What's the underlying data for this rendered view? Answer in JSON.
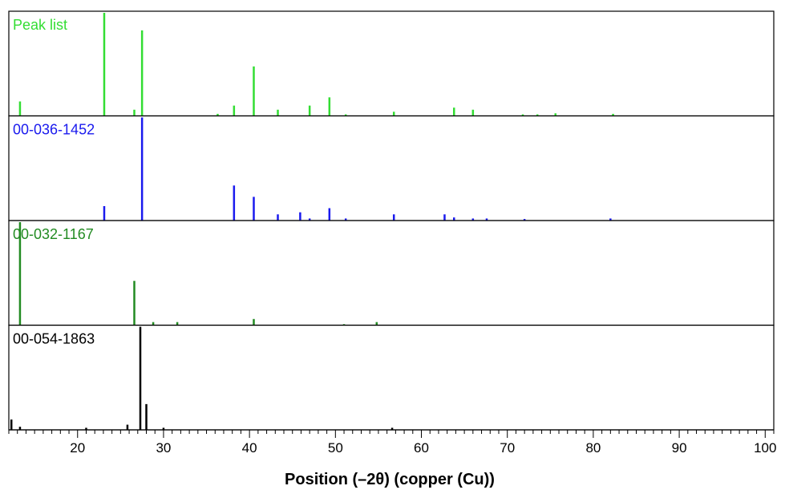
{
  "chart_data": {
    "type": "stick",
    "xlabel": "Position (–2θ) (copper (Cu))",
    "xlim": [
      12,
      101
    ],
    "x_ticks": [
      20,
      30,
      40,
      50,
      60,
      70,
      80,
      90,
      100
    ],
    "panels": [
      {
        "name": "Peak list",
        "color": "#33dd33",
        "peaks": [
          {
            "x": 13.3,
            "y": 14
          },
          {
            "x": 23.1,
            "y": 100
          },
          {
            "x": 26.6,
            "y": 6
          },
          {
            "x": 27.5,
            "y": 83
          },
          {
            "x": 36.3,
            "y": 2
          },
          {
            "x": 38.2,
            "y": 10
          },
          {
            "x": 40.5,
            "y": 48
          },
          {
            "x": 43.3,
            "y": 6
          },
          {
            "x": 47.0,
            "y": 10
          },
          {
            "x": 49.3,
            "y": 18
          },
          {
            "x": 51.2,
            "y": 1.5
          },
          {
            "x": 56.8,
            "y": 4
          },
          {
            "x": 63.8,
            "y": 8
          },
          {
            "x": 66.0,
            "y": 6
          },
          {
            "x": 71.8,
            "y": 1.5
          },
          {
            "x": 73.5,
            "y": 1.5
          },
          {
            "x": 75.6,
            "y": 2.5
          },
          {
            "x": 82.3,
            "y": 2
          }
        ]
      },
      {
        "name": "00-036-1452",
        "color": "#1a1aee",
        "peaks": [
          {
            "x": 23.1,
            "y": 14
          },
          {
            "x": 27.5,
            "y": 100
          },
          {
            "x": 38.2,
            "y": 34
          },
          {
            "x": 40.5,
            "y": 23
          },
          {
            "x": 43.3,
            "y": 6
          },
          {
            "x": 45.9,
            "y": 8
          },
          {
            "x": 47.0,
            "y": 2
          },
          {
            "x": 49.3,
            "y": 12
          },
          {
            "x": 51.2,
            "y": 2
          },
          {
            "x": 56.8,
            "y": 6
          },
          {
            "x": 62.7,
            "y": 6
          },
          {
            "x": 63.8,
            "y": 3
          },
          {
            "x": 66.0,
            "y": 2
          },
          {
            "x": 67.6,
            "y": 2
          },
          {
            "x": 72.0,
            "y": 1.5
          },
          {
            "x": 82.0,
            "y": 2
          }
        ]
      },
      {
        "name": "00-032-1167",
        "color": "#228b22",
        "peaks": [
          {
            "x": 13.3,
            "y": 100
          },
          {
            "x": 26.6,
            "y": 43
          },
          {
            "x": 28.8,
            "y": 3
          },
          {
            "x": 31.6,
            "y": 3
          },
          {
            "x": 40.5,
            "y": 6
          },
          {
            "x": 51.0,
            "y": 1
          },
          {
            "x": 54.8,
            "y": 3
          }
        ]
      },
      {
        "name": "00-054-1863",
        "color": "#000000",
        "peaks": [
          {
            "x": 12.3,
            "y": 10
          },
          {
            "x": 13.3,
            "y": 3
          },
          {
            "x": 21.0,
            "y": 2
          },
          {
            "x": 25.8,
            "y": 5
          },
          {
            "x": 27.3,
            "y": 100
          },
          {
            "x": 28.0,
            "y": 25
          },
          {
            "x": 30.0,
            "y": 2
          },
          {
            "x": 56.6,
            "y": 2
          }
        ]
      }
    ]
  }
}
